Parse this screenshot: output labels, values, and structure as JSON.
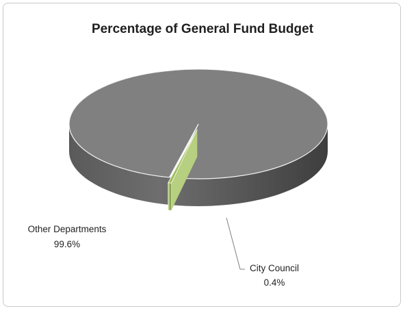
{
  "chart_data": {
    "type": "pie",
    "title": "Percentage of General Fund Budget",
    "style": "3d-exploded",
    "series": [
      {
        "categories": [
          "Other Departments",
          "City Council"
        ],
        "values": [
          99.6,
          0.4
        ],
        "value_labels": [
          "99.6%",
          "0.4%"
        ],
        "colors": [
          "#808080",
          "#9bbb59"
        ]
      }
    ],
    "legend": "none",
    "data_labels": "outside-with-leader"
  }
}
